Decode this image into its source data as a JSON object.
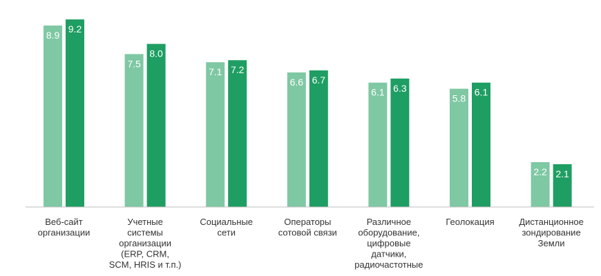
{
  "chart_data": {
    "type": "bar",
    "categories": [
      [
        "Веб-сайт",
        "организации"
      ],
      [
        "Учетные",
        "системы",
        "организации",
        "(ERP, CRM,",
        "SCM, HRIS и т.п.)"
      ],
      [
        "Социальные",
        "сети"
      ],
      [
        "Операторы",
        "сотовой связи"
      ],
      [
        "Различное",
        "оборудование,",
        "цифровые",
        "датчики,",
        "радиочастотные"
      ],
      [
        "Геолокация"
      ],
      [
        "Дистанционное",
        "зондирование",
        "Земли"
      ]
    ],
    "series": [
      {
        "color": "#7fc8a4",
        "values": [
          8.9,
          7.5,
          7.1,
          6.6,
          6.1,
          5.8,
          2.2
        ],
        "labels": [
          "8.9",
          "7.5",
          "7.1",
          "6.6",
          "6.1",
          "5.8",
          "2.2"
        ]
      },
      {
        "color": "#1f9e63",
        "values": [
          9.2,
          8.0,
          7.2,
          6.7,
          6.3,
          6.1,
          2.1
        ],
        "labels": [
          "9.2",
          "8.0",
          "7.2",
          "6.7",
          "6.3",
          "6.1",
          "2.1"
        ]
      }
    ],
    "ylim": [
      0,
      10
    ],
    "grid": false,
    "legend": "none",
    "axis_color": "#bfbfbf"
  }
}
